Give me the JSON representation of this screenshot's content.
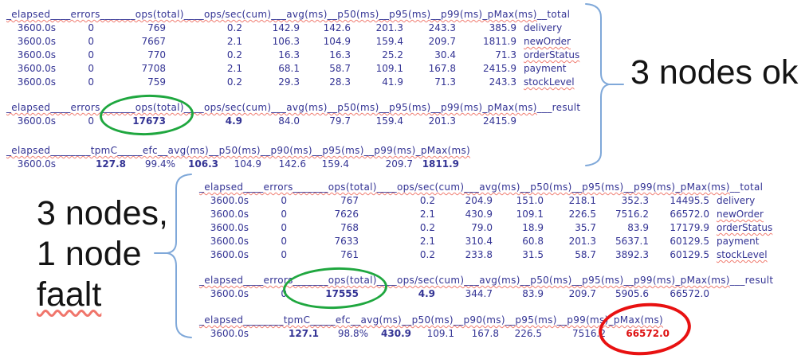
{
  "colors": {
    "table_text": "#333394",
    "highlight_red": "#de1212",
    "squiggle_red": "#f07c70",
    "ellipse_green": "#1fa73f",
    "ellipse_red": "#e81111",
    "brace_blue": "#7fa8d9",
    "label_text": "#141414"
  },
  "labels": {
    "top_right": "3 nodes ok",
    "bottom_left_lines": [
      "3 nodes,",
      "1 node",
      "faalt"
    ]
  },
  "tables": {
    "top_ops": {
      "header_main": "_elapsed____errors_______ops(total)____ops/sec(cum)___avg(ms)__p50(ms)__p95(ms)__p99(ms)_pMax(ms)",
      "header_last": "__total",
      "rows": [
        {
          "c": [
            "3600.0s",
            "0",
            "769",
            "0.2",
            "142.9",
            "142.6",
            "201.3",
            "243.3",
            "385.9"
          ],
          "label": "delivery",
          "sq": false
        },
        {
          "c": [
            "3600.0s",
            "0",
            "7667",
            "2.1",
            "106.3",
            "104.9",
            "159.4",
            "209.7",
            "1811.9"
          ],
          "label": "newOrder",
          "sq": true
        },
        {
          "c": [
            "3600.0s",
            "0",
            "770",
            "0.2",
            "16.3",
            "16.3",
            "25.2",
            "30.4",
            "71.3"
          ],
          "label": "orderStatus",
          "sq": true
        },
        {
          "c": [
            "3600.0s",
            "0",
            "7708",
            "2.1",
            "68.1",
            "58.7",
            "109.1",
            "167.8",
            "2415.9"
          ],
          "label": "payment",
          "sq": false
        },
        {
          "c": [
            "3600.0s",
            "0",
            "759",
            "0.2",
            "29.3",
            "28.3",
            "41.9",
            "71.3",
            "243.3"
          ],
          "label": "stockLevel",
          "sq": true
        }
      ]
    },
    "top_sum": {
      "header_main": "_elapsed____errors_______ops(total)____ops/sec(cum)___avg(ms)__p50(ms)__p95(ms)__p99(ms)_pMax(ms)",
      "header_last": "___result",
      "rows": [
        {
          "c": [
            "3600.0s",
            "0",
            "17673",
            "4.9",
            "84.0",
            "79.7",
            "159.4",
            "201.3",
            "2415.9"
          ],
          "label": "",
          "bold": [
            2,
            3
          ]
        }
      ]
    },
    "top_tpmc": {
      "header_main": "_elapsed________tpmC_____efc__avg(ms)__p50(ms)__p90(ms)__p95(ms)__p99(ms)_pMax(ms)",
      "header_last": "",
      "rows": [
        {
          "c": [
            "3600.0s",
            "127.8",
            "99.4%",
            "106.3",
            "104.9",
            "142.6",
            "159.4",
            "209.7",
            "1811.9"
          ],
          "label": "",
          "bold": [
            1,
            3,
            8
          ]
        }
      ]
    },
    "bot_ops": {
      "header_main": "_elapsed____errors_______ops(total)____ops/sec(cum)___avg(ms)__p50(ms)__p95(ms)__p99(ms)_pMax(ms)",
      "header_last": "__total",
      "rows": [
        {
          "c": [
            "3600.0s",
            "0",
            "767",
            "0.2",
            "204.9",
            "151.0",
            "218.1",
            "352.3",
            "14495.5"
          ],
          "label": "delivery",
          "sq": false
        },
        {
          "c": [
            "3600.0s",
            "0",
            "7626",
            "2.1",
            "430.9",
            "109.1",
            "226.5",
            "7516.2",
            "66572.0"
          ],
          "label": "newOrder",
          "sq": true
        },
        {
          "c": [
            "3600.0s",
            "0",
            "768",
            "0.2",
            "79.0",
            "18.9",
            "35.7",
            "83.9",
            "17179.9"
          ],
          "label": "orderStatus",
          "sq": true
        },
        {
          "c": [
            "3600.0s",
            "0",
            "7633",
            "2.1",
            "310.4",
            "60.8",
            "201.3",
            "5637.1",
            "60129.5"
          ],
          "label": "payment",
          "sq": false
        },
        {
          "c": [
            "3600.0s",
            "0",
            "761",
            "0.2",
            "233.8",
            "31.5",
            "58.7",
            "3892.3",
            "60129.5"
          ],
          "label": "stockLevel",
          "sq": true
        }
      ]
    },
    "bot_sum": {
      "header_main": "_elapsed____errors_______ops(total)____ops/sec(cum)___avg(ms)__p50(ms)__p95(ms)__p99(ms)_pMax(ms)",
      "header_last": "___result",
      "rows": [
        {
          "c": [
            "3600.0s",
            "0",
            "17555",
            "4.9",
            "344.7",
            "83.9",
            "209.7",
            "5905.6",
            "66572.0"
          ],
          "label": "",
          "bold": [
            2,
            3
          ]
        }
      ]
    },
    "bot_tpmc": {
      "header_main": "_elapsed________tpmC_____efc__avg(ms)__p50(ms)__p90(ms)__p95(ms)__p99(ms)_pMax(ms)",
      "header_last": "",
      "rows": [
        {
          "c": [
            "3600.0s",
            "127.1",
            "98.8%",
            "430.9",
            "109.1",
            "167.8",
            "226.5",
            "7516.2",
            "66572.0"
          ],
          "label": "",
          "bold": [
            1,
            3,
            8
          ],
          "red": [
            8
          ]
        }
      ]
    }
  }
}
